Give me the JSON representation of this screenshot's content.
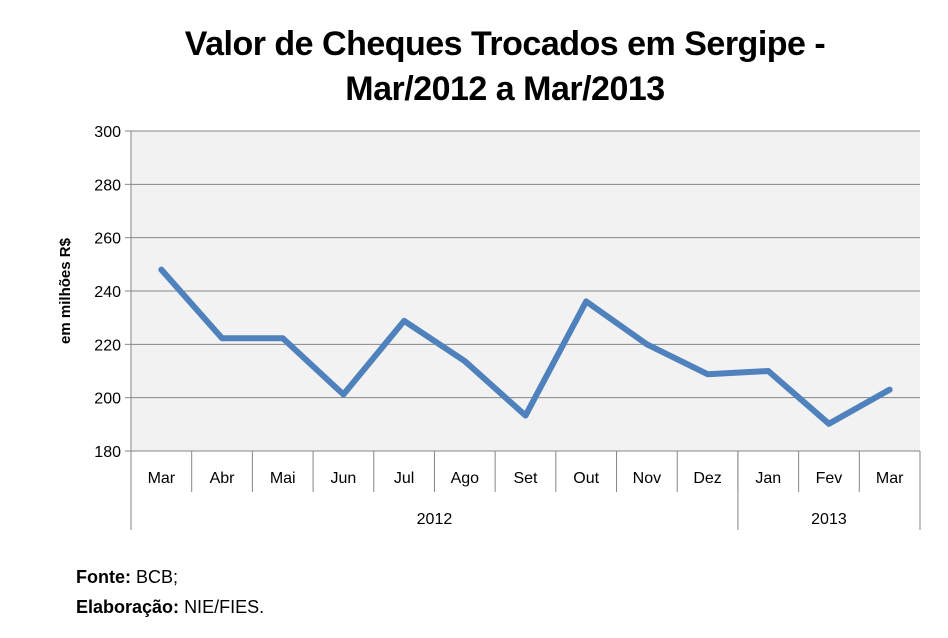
{
  "chart_data": {
    "type": "line",
    "title_line1": "Valor de Cheques Trocados em Sergipe -",
    "title_line2": "Mar/2012 a Mar/2013",
    "ylabel": "em milhões R$",
    "xlabel": "",
    "ylim": [
      180,
      300
    ],
    "yticks": [
      "180",
      "200",
      "220",
      "240",
      "260",
      "280",
      "300"
    ],
    "categories": [
      "Mar",
      "Abr",
      "Mai",
      "Jun",
      "Jul",
      "Ago",
      "Set",
      "Out",
      "Nov",
      "Dez",
      "Jan",
      "Fev",
      "Mar"
    ],
    "year_groups": [
      {
        "label": "2012",
        "count": 10
      },
      {
        "label": "2013",
        "count": 3
      }
    ],
    "series": [
      {
        "name": "Valor",
        "color": "#4F81BD",
        "values": [
          248.0,
          222.3,
          222.3,
          201.2,
          228.8,
          213.7,
          193.3,
          236.1,
          220.0,
          208.8,
          210.0,
          190.2,
          203.0
        ]
      }
    ],
    "grid": true,
    "legend": "none"
  },
  "source": {
    "label": "Fonte:",
    "value": "BCB;"
  },
  "elaboration": {
    "label": "Elaboração:",
    "value": "NIE/FIES."
  }
}
